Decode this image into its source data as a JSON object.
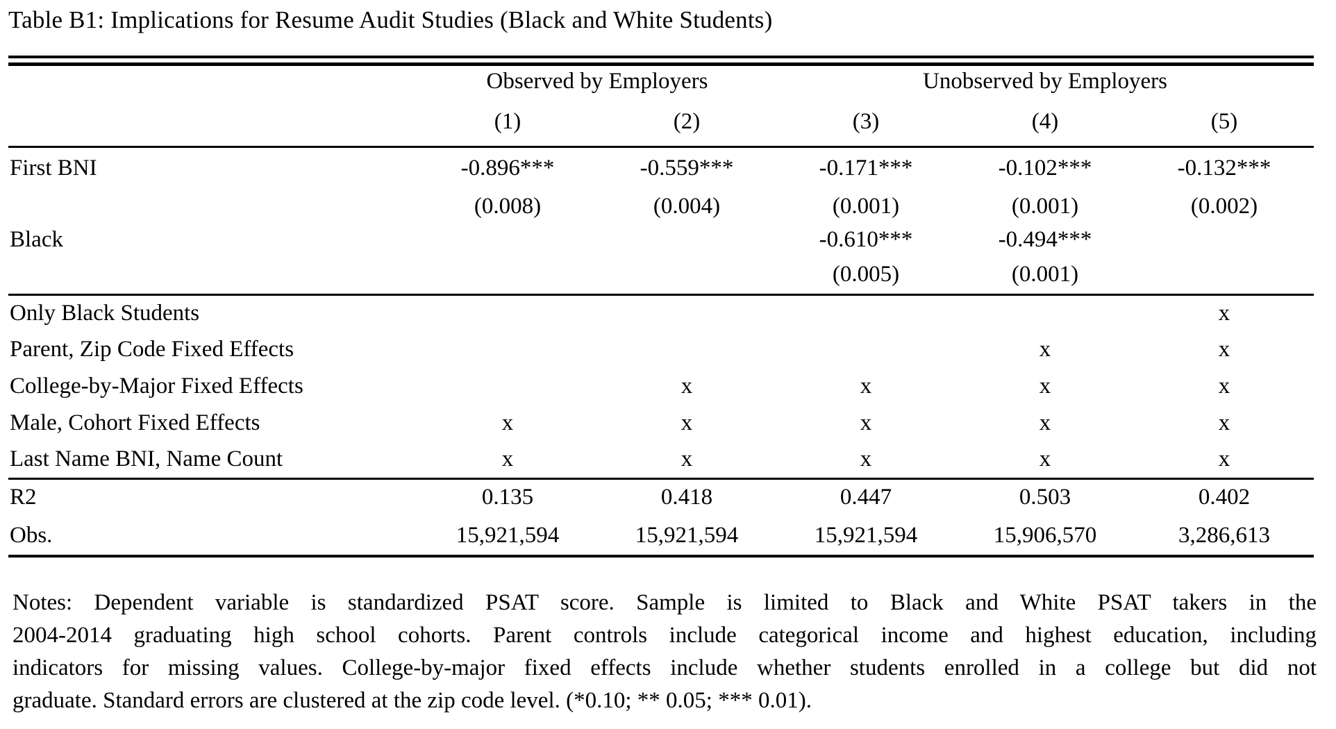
{
  "title": "Table B1: Implications for Resume Audit Studies (Black and White Students)",
  "colors": {
    "text": "#000000",
    "background": "#ffffff"
  },
  "table": {
    "group_headers": [
      {
        "label": "Observed by Employers",
        "columns": [
          "(1)",
          "(2)"
        ]
      },
      {
        "label": "Unobserved by Employers",
        "columns": [
          "(3)",
          "(4)",
          "(5)"
        ]
      }
    ],
    "column_numbers": [
      "(1)",
      "(2)",
      "(3)",
      "(4)",
      "(5)"
    ],
    "rows": [
      {
        "label": "First BNI",
        "cells": [
          "-0.896***",
          "-0.559***",
          "-0.171***",
          "-0.102***",
          "-0.132***"
        ]
      },
      {
        "label": "",
        "cells": [
          "(0.008)",
          "(0.004)",
          "(0.001)",
          "(0.001)",
          "(0.002)"
        ]
      },
      {
        "label": "Black",
        "cells": [
          "",
          "",
          "-0.610***",
          "-0.494***",
          ""
        ]
      },
      {
        "label": "",
        "cells": [
          "",
          "",
          "(0.005)",
          "(0.001)",
          ""
        ]
      },
      {
        "label": "Only Black Students",
        "cells": [
          "",
          "",
          "",
          "",
          "x"
        ]
      },
      {
        "label": "Parent, Zip Code Fixed Effects",
        "cells": [
          "",
          "",
          "",
          "x",
          "x"
        ]
      },
      {
        "label": "College-by-Major Fixed Effects",
        "cells": [
          "",
          "x",
          "x",
          "x",
          "x"
        ]
      },
      {
        "label": "Male, Cohort Fixed Effects",
        "cells": [
          "x",
          "x",
          "x",
          "x",
          "x"
        ]
      },
      {
        "label": "Last Name BNI, Name Count",
        "cells": [
          "x",
          "x",
          "x",
          "x",
          "x"
        ]
      },
      {
        "label": "R2",
        "cells": [
          "0.135",
          "0.418",
          "0.447",
          "0.503",
          "0.402"
        ]
      },
      {
        "label": "Obs.",
        "cells": [
          "15,921,594",
          "15,921,594",
          "15,921,594",
          "15,906,570",
          "3,286,613"
        ]
      }
    ]
  },
  "notes_lines": [
    "Notes: Dependent variable is standardized PSAT score. Sample is limited to Black and White PSAT takers in the",
    "2004-2014 graduating high school cohorts. Parent controls include categorical income and highest education, including",
    "indicators for missing values. College-by-major fixed effects include whether students enrolled in a college but did not",
    "graduate. Standard errors are clustered at the zip code level. (*0.10; ** 0.05; *** 0.01)."
  ]
}
